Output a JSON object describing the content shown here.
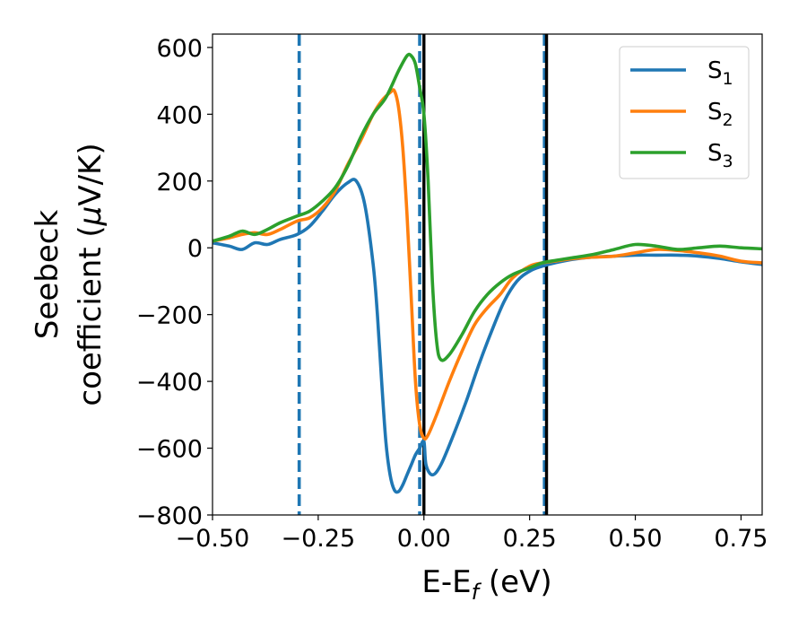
{
  "chart_data": {
    "type": "line",
    "title": "",
    "xlabel": "E-E",
    "xlabel_sub": "f",
    "xlabel_unit": " (eV)",
    "ylabel_line1": "Seebeck",
    "ylabel_line2": "coefficient  (",
    "ylabel_mu": "μ",
    "ylabel_unit": "V/K)",
    "xlim": [
      -0.5,
      0.8
    ],
    "ylim": [
      -800,
      640
    ],
    "xticks": [
      -0.5,
      -0.25,
      0.0,
      0.25,
      0.5,
      0.75
    ],
    "xtick_labels": [
      "−0.50",
      "−0.25",
      "0.00",
      "0.25",
      "0.50",
      "0.75"
    ],
    "yticks": [
      -800,
      -600,
      -400,
      -200,
      0,
      200,
      400,
      600
    ],
    "ytick_labels": [
      "−800",
      "−600",
      "−400",
      "−200",
      "0",
      "200",
      "400",
      "600"
    ],
    "grid": false,
    "legend_position": "top-right",
    "series": [
      {
        "name": "S",
        "sub": "1",
        "color": "#1f77b4",
        "x": [
          -0.5,
          -0.46,
          -0.43,
          -0.4,
          -0.37,
          -0.34,
          -0.3,
          -0.27,
          -0.24,
          -0.21,
          -0.18,
          -0.16,
          -0.14,
          -0.12,
          -0.11,
          -0.1,
          -0.09,
          -0.08,
          -0.07,
          -0.06,
          -0.05,
          -0.04,
          -0.03,
          -0.02,
          -0.01,
          0.0,
          0.005,
          0.02,
          0.04,
          0.07,
          0.1,
          0.13,
          0.16,
          0.19,
          0.22,
          0.25,
          0.28,
          0.31,
          0.35,
          0.4,
          0.45,
          0.5,
          0.55,
          0.6,
          0.65,
          0.7,
          0.75,
          0.8
        ],
        "y": [
          15,
          5,
          -5,
          15,
          10,
          25,
          40,
          65,
          110,
          160,
          195,
          200,
          130,
          -50,
          -200,
          -400,
          -580,
          -680,
          -725,
          -730,
          -710,
          -680,
          -650,
          -620,
          -600,
          -580,
          -650,
          -680,
          -650,
          -560,
          -460,
          -350,
          -250,
          -160,
          -100,
          -70,
          -55,
          -45,
          -35,
          -28,
          -25,
          -22,
          -22,
          -22,
          -25,
          -32,
          -42,
          -50
        ]
      },
      {
        "name": "S",
        "sub": "2",
        "color": "#ff7f0e",
        "x": [
          -0.5,
          -0.46,
          -0.43,
          -0.4,
          -0.37,
          -0.34,
          -0.3,
          -0.27,
          -0.24,
          -0.21,
          -0.18,
          -0.15,
          -0.12,
          -0.1,
          -0.08,
          -0.07,
          -0.06,
          -0.05,
          -0.04,
          -0.03,
          -0.02,
          -0.01,
          0.0,
          0.01,
          0.03,
          0.06,
          0.09,
          0.12,
          0.15,
          0.18,
          0.21,
          0.25,
          0.28,
          0.31,
          0.35,
          0.4,
          0.45,
          0.5,
          0.55,
          0.6,
          0.65,
          0.7,
          0.75,
          0.8
        ],
        "y": [
          20,
          30,
          40,
          45,
          40,
          55,
          80,
          90,
          120,
          170,
          250,
          320,
          400,
          440,
          465,
          470,
          420,
          300,
          100,
          -150,
          -400,
          -530,
          -570,
          -560,
          -500,
          -400,
          -310,
          -230,
          -180,
          -140,
          -90,
          -55,
          -45,
          -40,
          -33,
          -28,
          -25,
          -15,
          -5,
          -8,
          -15,
          -25,
          -40,
          -45
        ]
      },
      {
        "name": "S",
        "sub": "3",
        "color": "#2ca02c",
        "x": [
          -0.5,
          -0.46,
          -0.43,
          -0.4,
          -0.37,
          -0.34,
          -0.3,
          -0.27,
          -0.24,
          -0.21,
          -0.18,
          -0.15,
          -0.12,
          -0.09,
          -0.06,
          -0.04,
          -0.03,
          -0.02,
          -0.01,
          0.0,
          0.01,
          0.02,
          0.03,
          0.04,
          0.06,
          0.09,
          0.12,
          0.15,
          0.18,
          0.21,
          0.25,
          0.28,
          0.31,
          0.35,
          0.4,
          0.45,
          0.5,
          0.55,
          0.6,
          0.65,
          0.7,
          0.75,
          0.8
        ],
        "y": [
          20,
          35,
          50,
          40,
          55,
          75,
          95,
          110,
          140,
          180,
          245,
          330,
          400,
          450,
          530,
          575,
          575,
          550,
          480,
          400,
          200,
          -100,
          -280,
          -335,
          -320,
          -260,
          -190,
          -140,
          -105,
          -80,
          -60,
          -45,
          -38,
          -30,
          -20,
          -5,
          10,
          5,
          -5,
          0,
          5,
          0,
          -3
        ]
      }
    ],
    "vlines": [
      {
        "x": -0.295,
        "color": "#1f77b4",
        "style": "dashed"
      },
      {
        "x": -0.01,
        "color": "#1f77b4",
        "style": "dashed"
      },
      {
        "x": 0.285,
        "color": "#1f77b4",
        "style": "dashed"
      },
      {
        "x": 0.0,
        "color": "#000000",
        "style": "solid"
      },
      {
        "x": 0.29,
        "color": "#000000",
        "style": "solid"
      }
    ]
  }
}
